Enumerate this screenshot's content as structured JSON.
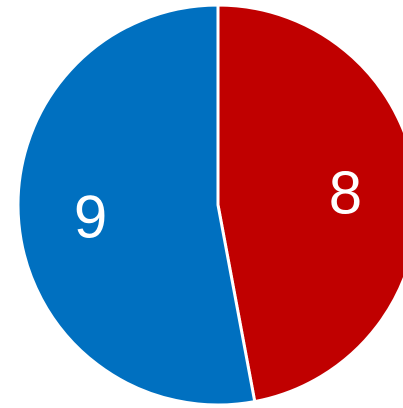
{
  "chart_data": {
    "type": "pie",
    "categories": [
      "",
      ""
    ],
    "values": [
      8,
      9
    ],
    "labels": [
      "8",
      "9"
    ],
    "colors": [
      "#c00000",
      "#0070c0"
    ],
    "start_angle_deg": 0,
    "direction": "clockwise",
    "legend": "none",
    "title": ""
  }
}
